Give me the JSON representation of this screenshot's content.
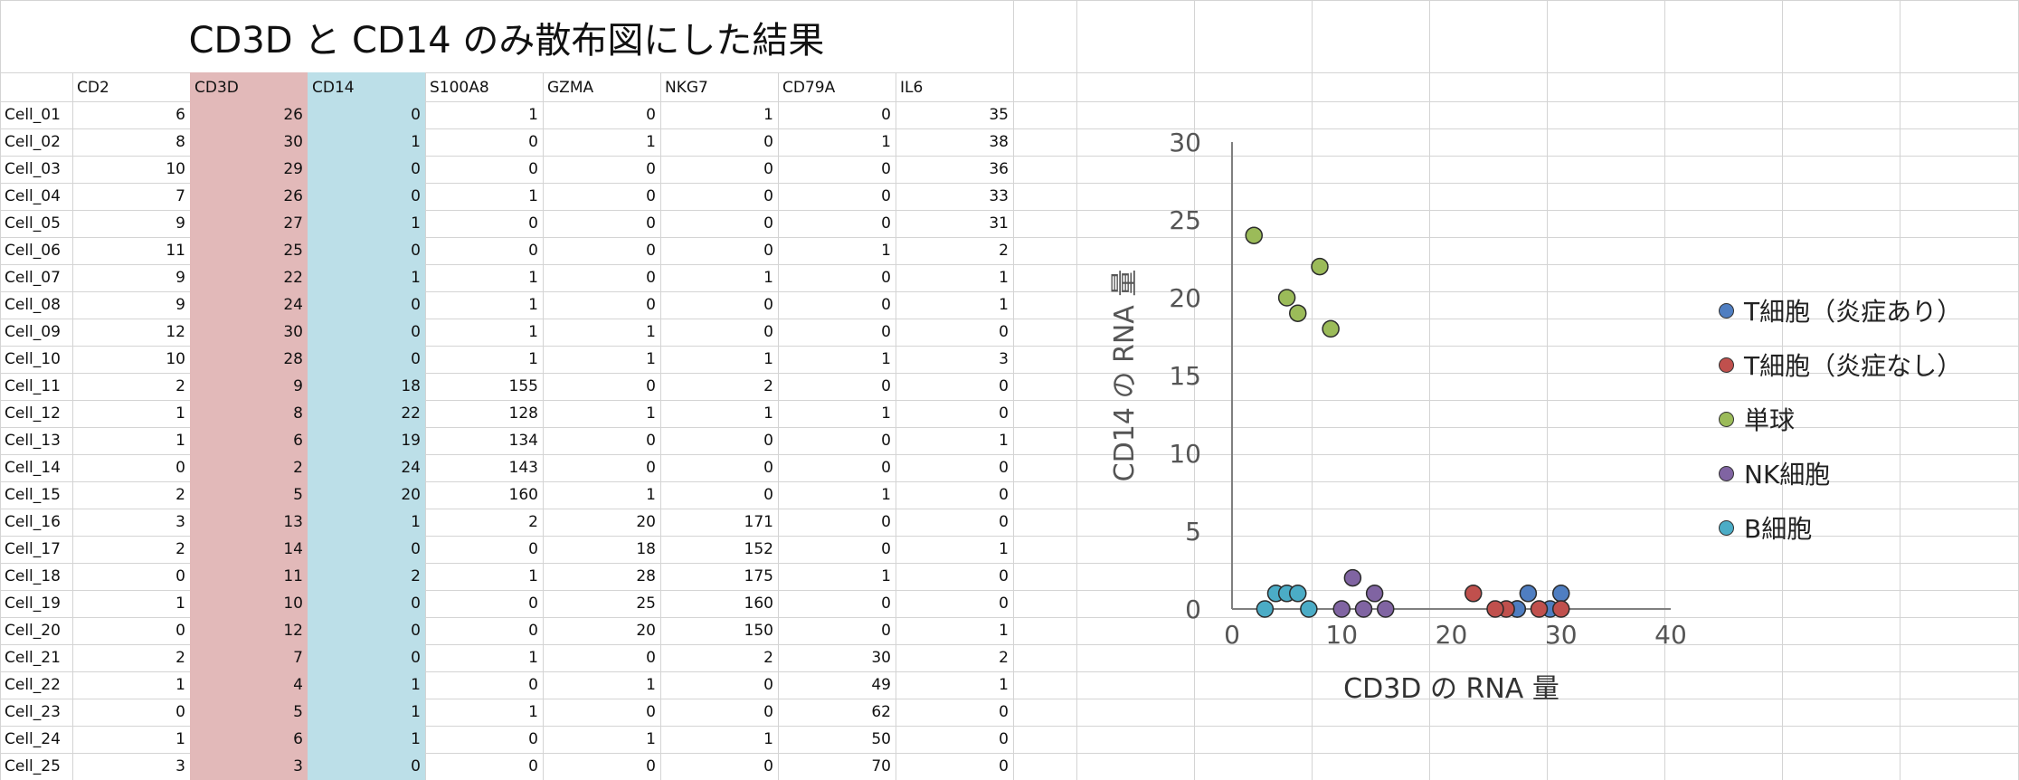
{
  "title": "CD3D と CD14 のみ散布図にした結果",
  "table": {
    "headers": [
      "",
      "CD2",
      "CD3D",
      "CD14",
      "S100A8",
      "GZMA",
      "NKG7",
      "CD79A",
      "IL6"
    ],
    "rows": [
      {
        "label": "Cell_01",
        "values": [
          6,
          26,
          0,
          1,
          0,
          1,
          0,
          35
        ]
      },
      {
        "label": "Cell_02",
        "values": [
          8,
          30,
          1,
          0,
          1,
          0,
          1,
          38
        ]
      },
      {
        "label": "Cell_03",
        "values": [
          10,
          29,
          0,
          0,
          0,
          0,
          0,
          36
        ]
      },
      {
        "label": "Cell_04",
        "values": [
          7,
          26,
          0,
          1,
          0,
          0,
          0,
          33
        ]
      },
      {
        "label": "Cell_05",
        "values": [
          9,
          27,
          1,
          0,
          0,
          0,
          0,
          31
        ]
      },
      {
        "label": "Cell_06",
        "values": [
          11,
          25,
          0,
          0,
          0,
          0,
          1,
          2
        ]
      },
      {
        "label": "Cell_07",
        "values": [
          9,
          22,
          1,
          1,
          0,
          1,
          0,
          1
        ]
      },
      {
        "label": "Cell_08",
        "values": [
          9,
          24,
          0,
          1,
          0,
          0,
          0,
          1
        ]
      },
      {
        "label": "Cell_09",
        "values": [
          12,
          30,
          0,
          1,
          1,
          0,
          0,
          0
        ]
      },
      {
        "label": "Cell_10",
        "values": [
          10,
          28,
          0,
          1,
          1,
          1,
          1,
          3
        ]
      },
      {
        "label": "Cell_11",
        "values": [
          2,
          9,
          18,
          155,
          0,
          2,
          0,
          0
        ]
      },
      {
        "label": "Cell_12",
        "values": [
          1,
          8,
          22,
          128,
          1,
          1,
          1,
          0
        ]
      },
      {
        "label": "Cell_13",
        "values": [
          1,
          6,
          19,
          134,
          0,
          0,
          0,
          1
        ]
      },
      {
        "label": "Cell_14",
        "values": [
          0,
          2,
          24,
          143,
          0,
          0,
          0,
          0
        ]
      },
      {
        "label": "Cell_15",
        "values": [
          2,
          5,
          20,
          160,
          1,
          0,
          1,
          0
        ]
      },
      {
        "label": "Cell_16",
        "values": [
          3,
          13,
          1,
          2,
          20,
          171,
          0,
          0
        ]
      },
      {
        "label": "Cell_17",
        "values": [
          2,
          14,
          0,
          0,
          18,
          152,
          0,
          1
        ]
      },
      {
        "label": "Cell_18",
        "values": [
          0,
          11,
          2,
          1,
          28,
          175,
          1,
          0
        ]
      },
      {
        "label": "Cell_19",
        "values": [
          1,
          10,
          0,
          0,
          25,
          160,
          0,
          0
        ]
      },
      {
        "label": "Cell_20",
        "values": [
          0,
          12,
          0,
          0,
          20,
          150,
          0,
          1
        ]
      },
      {
        "label": "Cell_21",
        "values": [
          2,
          7,
          0,
          1,
          0,
          2,
          30,
          2
        ]
      },
      {
        "label": "Cell_22",
        "values": [
          1,
          4,
          1,
          0,
          1,
          0,
          49,
          1
        ]
      },
      {
        "label": "Cell_23",
        "values": [
          0,
          5,
          1,
          1,
          0,
          0,
          62,
          0
        ]
      },
      {
        "label": "Cell_24",
        "values": [
          1,
          6,
          1,
          0,
          1,
          1,
          50,
          0
        ]
      },
      {
        "label": "Cell_25",
        "values": [
          3,
          3,
          0,
          0,
          0,
          0,
          70,
          0
        ]
      }
    ]
  },
  "colors": {
    "cd3d_column": "#e2b9b9",
    "cd14_column": "#bcdfe8",
    "gridline": "#d4d4d4",
    "axis": "#7f7f7f"
  },
  "chart_data": {
    "type": "scatter",
    "title": "",
    "xlabel": "CD3D の RNA 量",
    "ylabel": "CD14 の RNA 量",
    "xlim": [
      0,
      40
    ],
    "ylim": [
      0,
      30
    ],
    "xticks": [
      0,
      10,
      20,
      30,
      40
    ],
    "yticks": [
      0,
      5,
      10,
      15,
      20,
      25,
      30
    ],
    "grid": false,
    "legend_position": "right",
    "series": [
      {
        "name": "T細胞（炎症あり）",
        "color": "#4f7ec1",
        "x": [
          26,
          30,
          29,
          26,
          27
        ],
        "y": [
          0,
          1,
          0,
          0,
          1
        ]
      },
      {
        "name": "T細胞（炎症なし）",
        "color": "#c0504d",
        "x": [
          25,
          22,
          24,
          30,
          28
        ],
        "y": [
          0,
          1,
          0,
          0,
          0
        ]
      },
      {
        "name": "単球",
        "color": "#9bbb59",
        "x": [
          9,
          8,
          6,
          2,
          5
        ],
        "y": [
          18,
          22,
          19,
          24,
          20
        ]
      },
      {
        "name": "NK細胞",
        "color": "#8064a2",
        "x": [
          13,
          14,
          11,
          10,
          12
        ],
        "y": [
          1,
          0,
          2,
          0,
          0
        ]
      },
      {
        "name": "B細胞",
        "color": "#4bacc6",
        "x": [
          7,
          4,
          5,
          6,
          3
        ],
        "y": [
          0,
          1,
          1,
          1,
          0
        ]
      }
    ]
  }
}
